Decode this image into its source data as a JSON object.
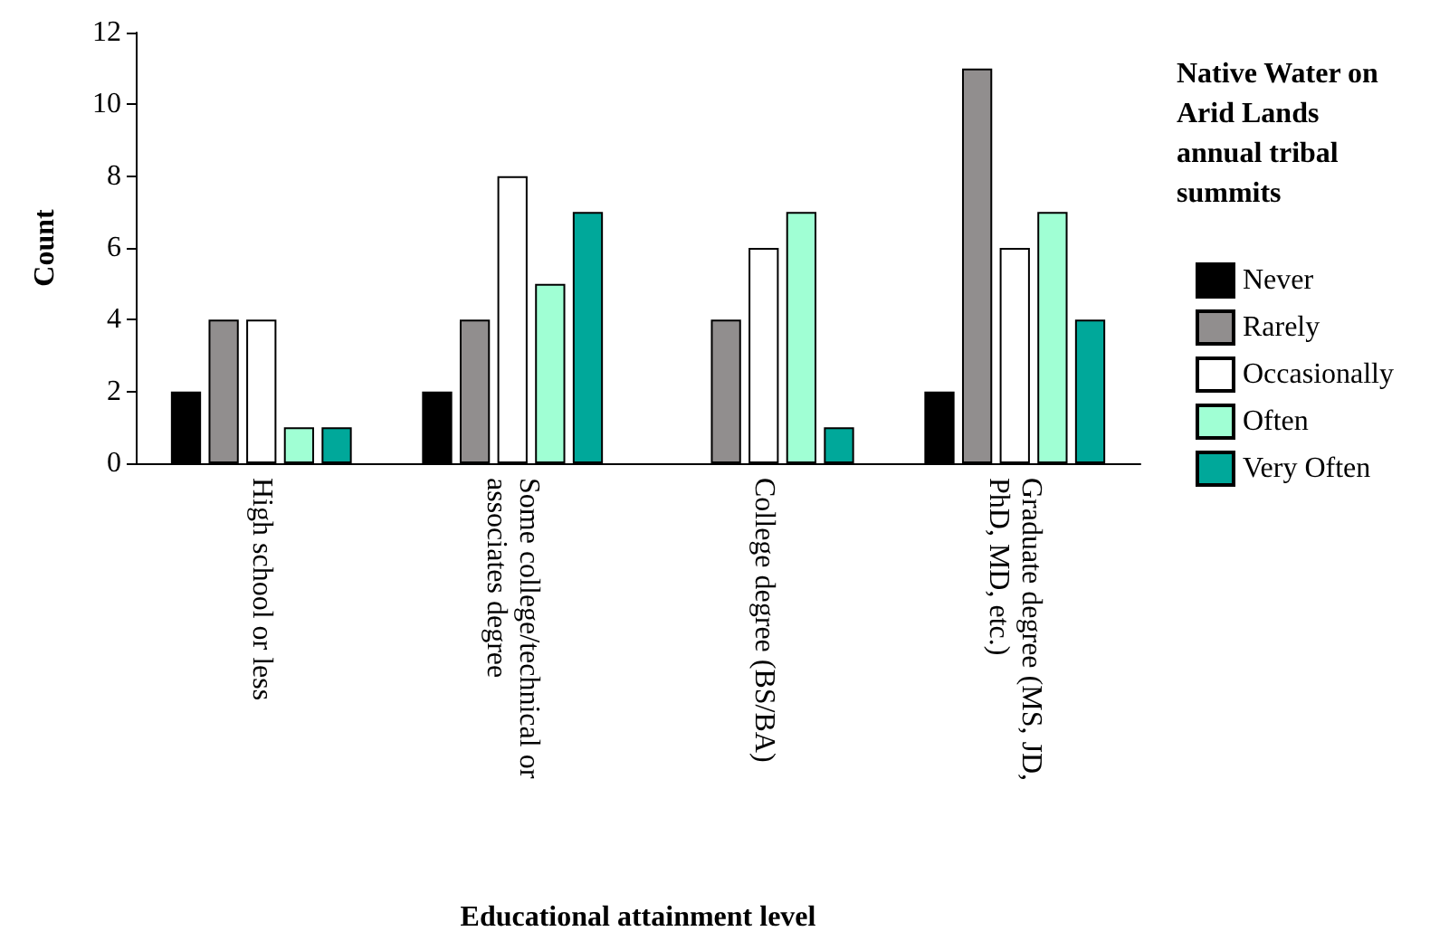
{
  "chart_data": {
    "type": "bar",
    "xlabel": "Educational attainment level",
    "ylabel": "Count",
    "legend_title": "Native Water on Arid Lands annual tribal summits",
    "categories": [
      "High school or less",
      "Some college/technical or associates degree",
      "College degree (BS/BA)",
      "Graduate degree (MS, JD, PhD, MD, etc.)"
    ],
    "series": [
      {
        "name": "Never",
        "color": "#000000",
        "values": [
          2,
          2,
          null,
          2
        ]
      },
      {
        "name": "Rarely",
        "color": "#918e8e",
        "values": [
          4,
          4,
          4,
          11
        ]
      },
      {
        "name": "Occasionally",
        "color": "#ffffff",
        "values": [
          4,
          8,
          6,
          6
        ]
      },
      {
        "name": "Often",
        "color": "#a0ffd4",
        "values": [
          1,
          5,
          7,
          7
        ]
      },
      {
        "name": "Very Often",
        "color": "#00a89a",
        "values": [
          1,
          7,
          1,
          4
        ]
      }
    ],
    "ylim": [
      0,
      12
    ],
    "yticks": [
      0,
      2,
      4,
      6,
      8,
      10,
      12
    ],
    "grid": false,
    "legend": "right"
  }
}
